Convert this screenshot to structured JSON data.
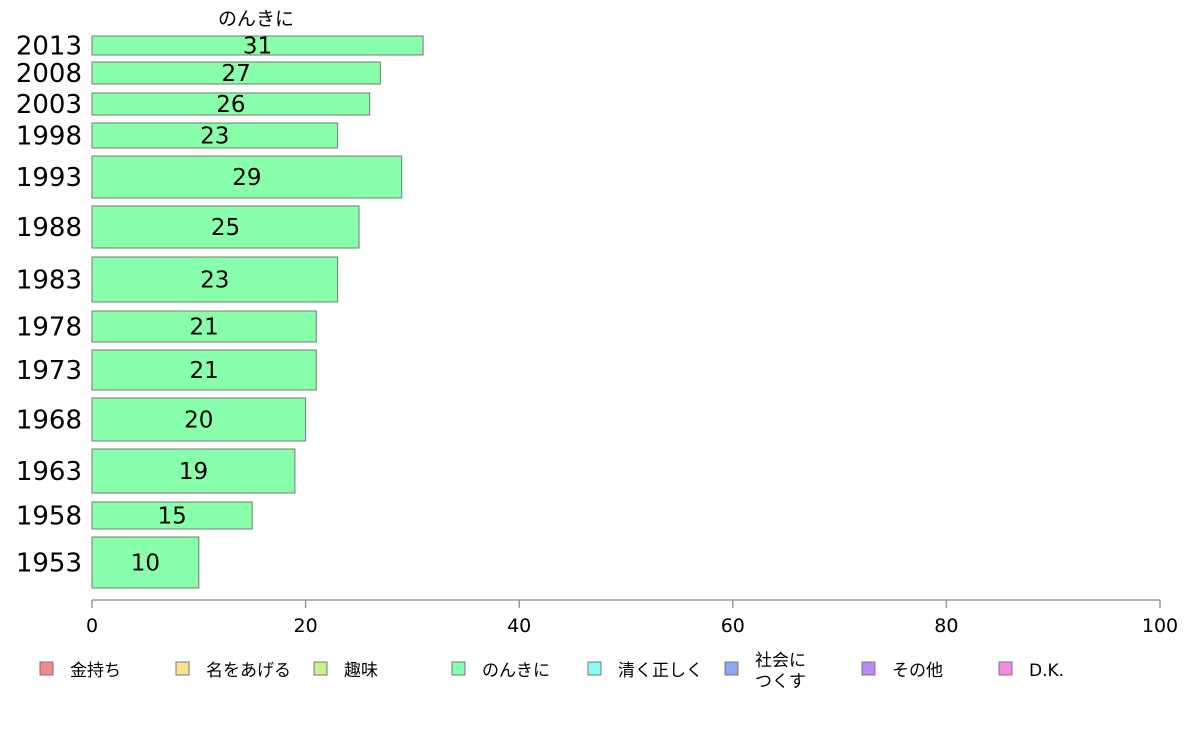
{
  "chart_data": {
    "type": "bar",
    "orientation": "horizontal",
    "title": "のんきに",
    "categories": [
      "2013",
      "2008",
      "2003",
      "1998",
      "1993",
      "1988",
      "1983",
      "1978",
      "1973",
      "1968",
      "1963",
      "1958",
      "1953"
    ],
    "values": [
      31,
      27,
      26,
      23,
      29,
      25,
      23,
      21,
      21,
      20,
      19,
      15,
      10
    ],
    "xlim": [
      0,
      100
    ],
    "xticks": [
      0,
      20,
      40,
      60,
      80,
      100
    ],
    "bar_color": "#88ffaa",
    "bar_edge_color": "#777777",
    "grid": false,
    "legend_position": "bottom",
    "legend": [
      {
        "label": "金持ち",
        "color": "#f58a8a"
      },
      {
        "label": "名をあげる",
        "color": "#fce38a"
      },
      {
        "label": "趣味",
        "color": "#c8f58a"
      },
      {
        "label": "のんきに",
        "color": "#88ffaa"
      },
      {
        "label": "清く正しく",
        "color": "#8afcf5"
      },
      {
        "label": "社会に\nつくす",
        "color": "#8aa6f5"
      },
      {
        "label": "その他",
        "color": "#b88af5"
      },
      {
        "label": "D.K.",
        "color": "#f58ae3"
      }
    ]
  }
}
